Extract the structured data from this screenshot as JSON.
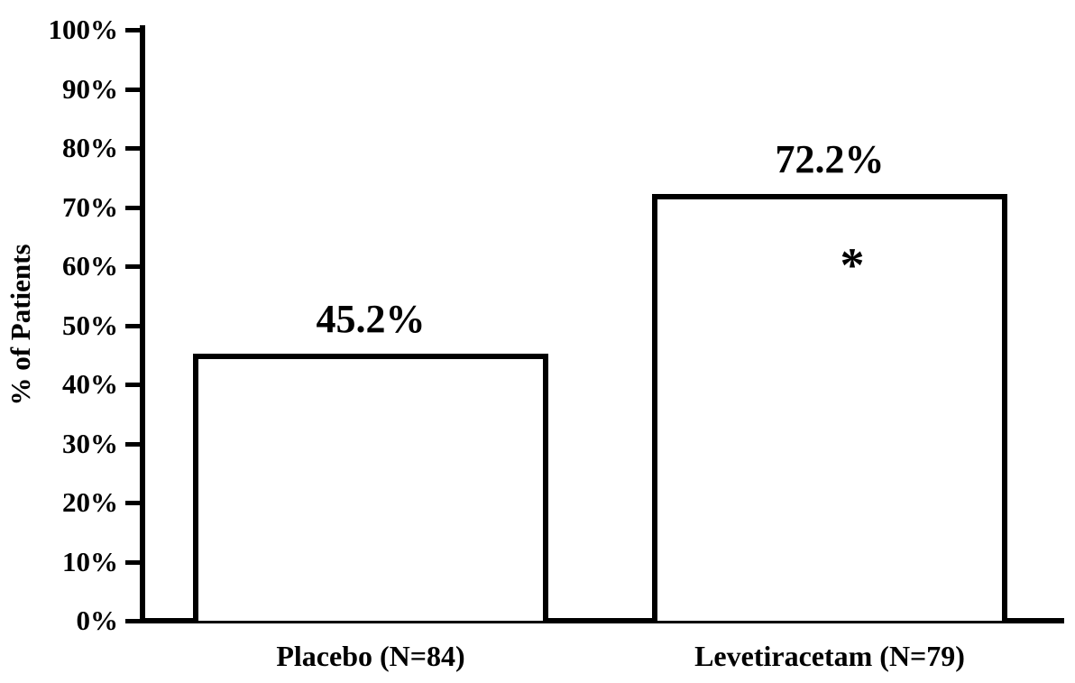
{
  "chart_data": {
    "type": "bar",
    "title": "",
    "xlabel": "",
    "ylabel": "% of Patients",
    "categories": [
      "Placebo (N=84)",
      "Levetiracetam (N=79)"
    ],
    "values": [
      45.2,
      72.2
    ],
    "value_labels": [
      "45.2%",
      "72.2%"
    ],
    "annotations": [
      {
        "bar_index": 1,
        "text": "*",
        "meaning": "statistical-significance-marker"
      }
    ],
    "ylim": [
      0,
      100
    ],
    "ytick_step": 10,
    "ytick_labels": [
      "0%",
      "10%",
      "20%",
      "30%",
      "40%",
      "50%",
      "60%",
      "70%",
      "80%",
      "90%",
      "100%"
    ],
    "grid": false,
    "legend": null,
    "colors": {
      "background": "#ffffff",
      "bar_fill": "#ffffff",
      "bar_border": "#000000",
      "axis": "#000000",
      "text": "#000000"
    }
  }
}
